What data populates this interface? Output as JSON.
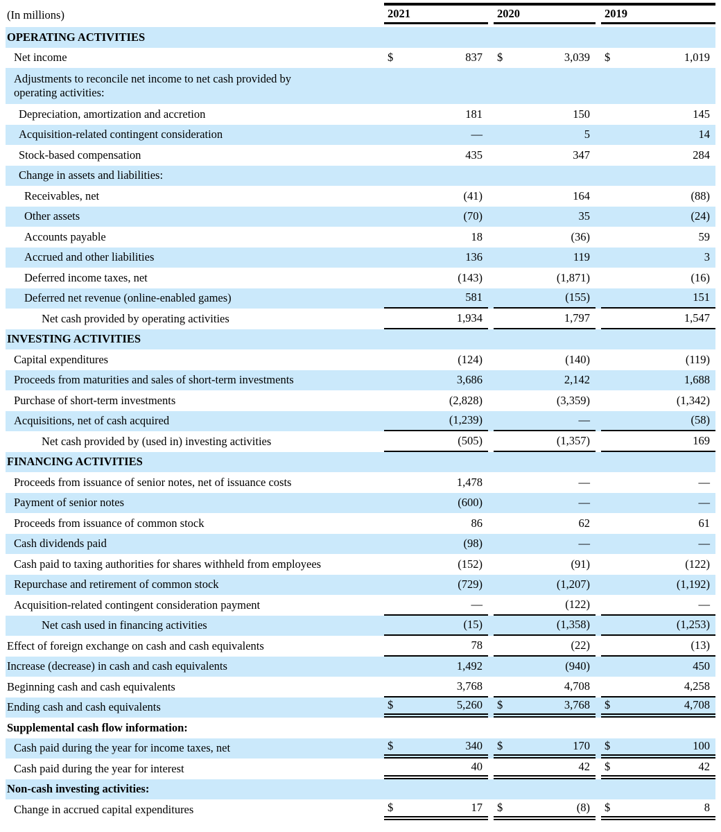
{
  "colors": {
    "stripe_blue": "#cbe9fb",
    "text": "#000000",
    "rule": "#000000"
  },
  "header": {
    "caption": "(In millions)",
    "years": [
      "2021",
      "2020",
      "2019"
    ]
  },
  "rows": [
    {
      "label": "OPERATING ACTIVITIES",
      "type": "section",
      "bg": "blue",
      "indent": 0,
      "values": null
    },
    {
      "label": "Net income",
      "bg": "white",
      "indent": 1,
      "dollar": true,
      "values": [
        "837",
        "3,039",
        "1,019"
      ]
    },
    {
      "label": "Adjustments to reconcile net income to net cash provided by operating activities:",
      "bg": "blue",
      "indent": 1,
      "values": null,
      "two_line": true
    },
    {
      "label": "Depreciation, amortization and accretion",
      "bg": "white",
      "indent": 2,
      "values": [
        "181",
        "150",
        "145"
      ]
    },
    {
      "label": "Acquisition-related contingent consideration",
      "bg": "blue",
      "indent": 2,
      "values": [
        "—",
        "5",
        "14"
      ]
    },
    {
      "label": "Stock-based compensation",
      "bg": "white",
      "indent": 2,
      "values": [
        "435",
        "347",
        "284"
      ]
    },
    {
      "label": "Change in assets and liabilities:",
      "bg": "blue",
      "indent": 2,
      "values": null
    },
    {
      "label": "Receivables, net",
      "bg": "white",
      "indent": 3,
      "values": [
        "(41)",
        "164",
        "(88)"
      ]
    },
    {
      "label": "Other assets",
      "bg": "blue",
      "indent": 3,
      "values": [
        "(70)",
        "35",
        "(24)"
      ]
    },
    {
      "label": "Accounts payable",
      "bg": "white",
      "indent": 3,
      "values": [
        "18",
        "(36)",
        "59"
      ]
    },
    {
      "label": "Accrued and other liabilities",
      "bg": "blue",
      "indent": 3,
      "values": [
        "136",
        "119",
        "3"
      ]
    },
    {
      "label": "Deferred income taxes, net",
      "bg": "white",
      "indent": 3,
      "values": [
        "(143)",
        "(1,871)",
        "(16)"
      ]
    },
    {
      "label": "Deferred net revenue (online-enabled games)",
      "bg": "blue",
      "indent": 3,
      "values": [
        "581",
        "(155)",
        "151"
      ],
      "rule": "single"
    },
    {
      "label": "Net cash provided by operating activities",
      "bg": "white",
      "indent": 4,
      "values": [
        "1,934",
        "1,797",
        "1,547"
      ],
      "rule": "single"
    },
    {
      "label": "INVESTING ACTIVITIES",
      "type": "section",
      "bg": "blue",
      "indent": 0,
      "values": null
    },
    {
      "label": "Capital expenditures",
      "bg": "white",
      "indent": 1,
      "values": [
        "(124)",
        "(140)",
        "(119)"
      ]
    },
    {
      "label": "Proceeds from maturities and sales of short-term investments",
      "bg": "blue",
      "indent": 1,
      "values": [
        "3,686",
        "2,142",
        "1,688"
      ]
    },
    {
      "label": "Purchase of short-term investments",
      "bg": "white",
      "indent": 1,
      "values": [
        "(2,828)",
        "(3,359)",
        "(1,342)"
      ]
    },
    {
      "label": "Acquisitions, net of cash acquired",
      "bg": "blue",
      "indent": 1,
      "values": [
        "(1,239)",
        "—",
        "(58)"
      ],
      "rule": "single"
    },
    {
      "label": "Net cash provided by (used in) investing activities",
      "bg": "white",
      "indent": 4,
      "values": [
        "(505)",
        "(1,357)",
        "169"
      ],
      "rule": "single"
    },
    {
      "label": "FINANCING ACTIVITIES",
      "type": "section",
      "bg": "blue",
      "indent": 0,
      "values": null
    },
    {
      "label": "Proceeds from issuance of senior notes, net of issuance costs",
      "bg": "white",
      "indent": 1,
      "values": [
        "1,478",
        "—",
        "—"
      ]
    },
    {
      "label": "Payment of senior notes",
      "bg": "blue",
      "indent": 1,
      "values": [
        "(600)",
        "—",
        "—"
      ]
    },
    {
      "label": "Proceeds from issuance of common stock",
      "bg": "white",
      "indent": 1,
      "values": [
        "86",
        "62",
        "61"
      ]
    },
    {
      "label": "Cash dividends paid",
      "bg": "blue",
      "indent": 1,
      "values": [
        "(98)",
        "—",
        "—"
      ]
    },
    {
      "label": "Cash paid to taxing authorities for shares withheld from employees",
      "bg": "white",
      "indent": 1,
      "values": [
        "(152)",
        "(91)",
        "(122)"
      ]
    },
    {
      "label": "Repurchase and retirement of common stock",
      "bg": "blue",
      "indent": 1,
      "values": [
        "(729)",
        "(1,207)",
        "(1,192)"
      ]
    },
    {
      "label": "Acquisition-related contingent consideration payment",
      "bg": "white",
      "indent": 1,
      "values": [
        "—",
        "(122)",
        "—"
      ],
      "rule": "single"
    },
    {
      "label": "Net cash used in financing activities",
      "bg": "blue",
      "indent": 4,
      "values": [
        "(15)",
        "(1,358)",
        "(1,253)"
      ],
      "rule": "single"
    },
    {
      "label": "Effect of foreign exchange on cash and cash equivalents",
      "bg": "white",
      "indent": 0,
      "values": [
        "78",
        "(22)",
        "(13)"
      ],
      "rule": "single"
    },
    {
      "label": "Increase (decrease) in cash and cash equivalents",
      "bg": "blue",
      "indent": 0,
      "values": [
        "1,492",
        "(940)",
        "450"
      ]
    },
    {
      "label": "Beginning cash and cash equivalents",
      "bg": "white",
      "indent": 0,
      "values": [
        "3,768",
        "4,708",
        "4,258"
      ],
      "rule": "single"
    },
    {
      "label": "Ending cash and cash equivalents",
      "bg": "blue",
      "indent": 0,
      "dollar": true,
      "values": [
        "5,260",
        "3,768",
        "4,708"
      ],
      "rule": "double"
    },
    {
      "label": "Supplemental cash flow information:",
      "type": "section",
      "bg": "white",
      "indent": 0,
      "values": null
    },
    {
      "label": "Cash paid during the year for income taxes, net",
      "bg": "blue",
      "indent": 1,
      "dollar": true,
      "values": [
        "340",
        "170",
        "100"
      ],
      "rule": "double"
    },
    {
      "label": "Cash paid during the year for interest",
      "bg": "white",
      "indent": 1,
      "dollar": [
        false,
        false,
        true
      ],
      "values": [
        "40",
        "42",
        "42"
      ],
      "rule": "double"
    },
    {
      "label": "Non-cash investing activities:",
      "type": "section",
      "bg": "blue",
      "indent": 0,
      "values": null
    },
    {
      "label": "Change in accrued capital expenditures",
      "bg": "white",
      "indent": 1,
      "dollar": true,
      "values": [
        "17",
        "(8)",
        "8"
      ],
      "rule": "double"
    }
  ]
}
